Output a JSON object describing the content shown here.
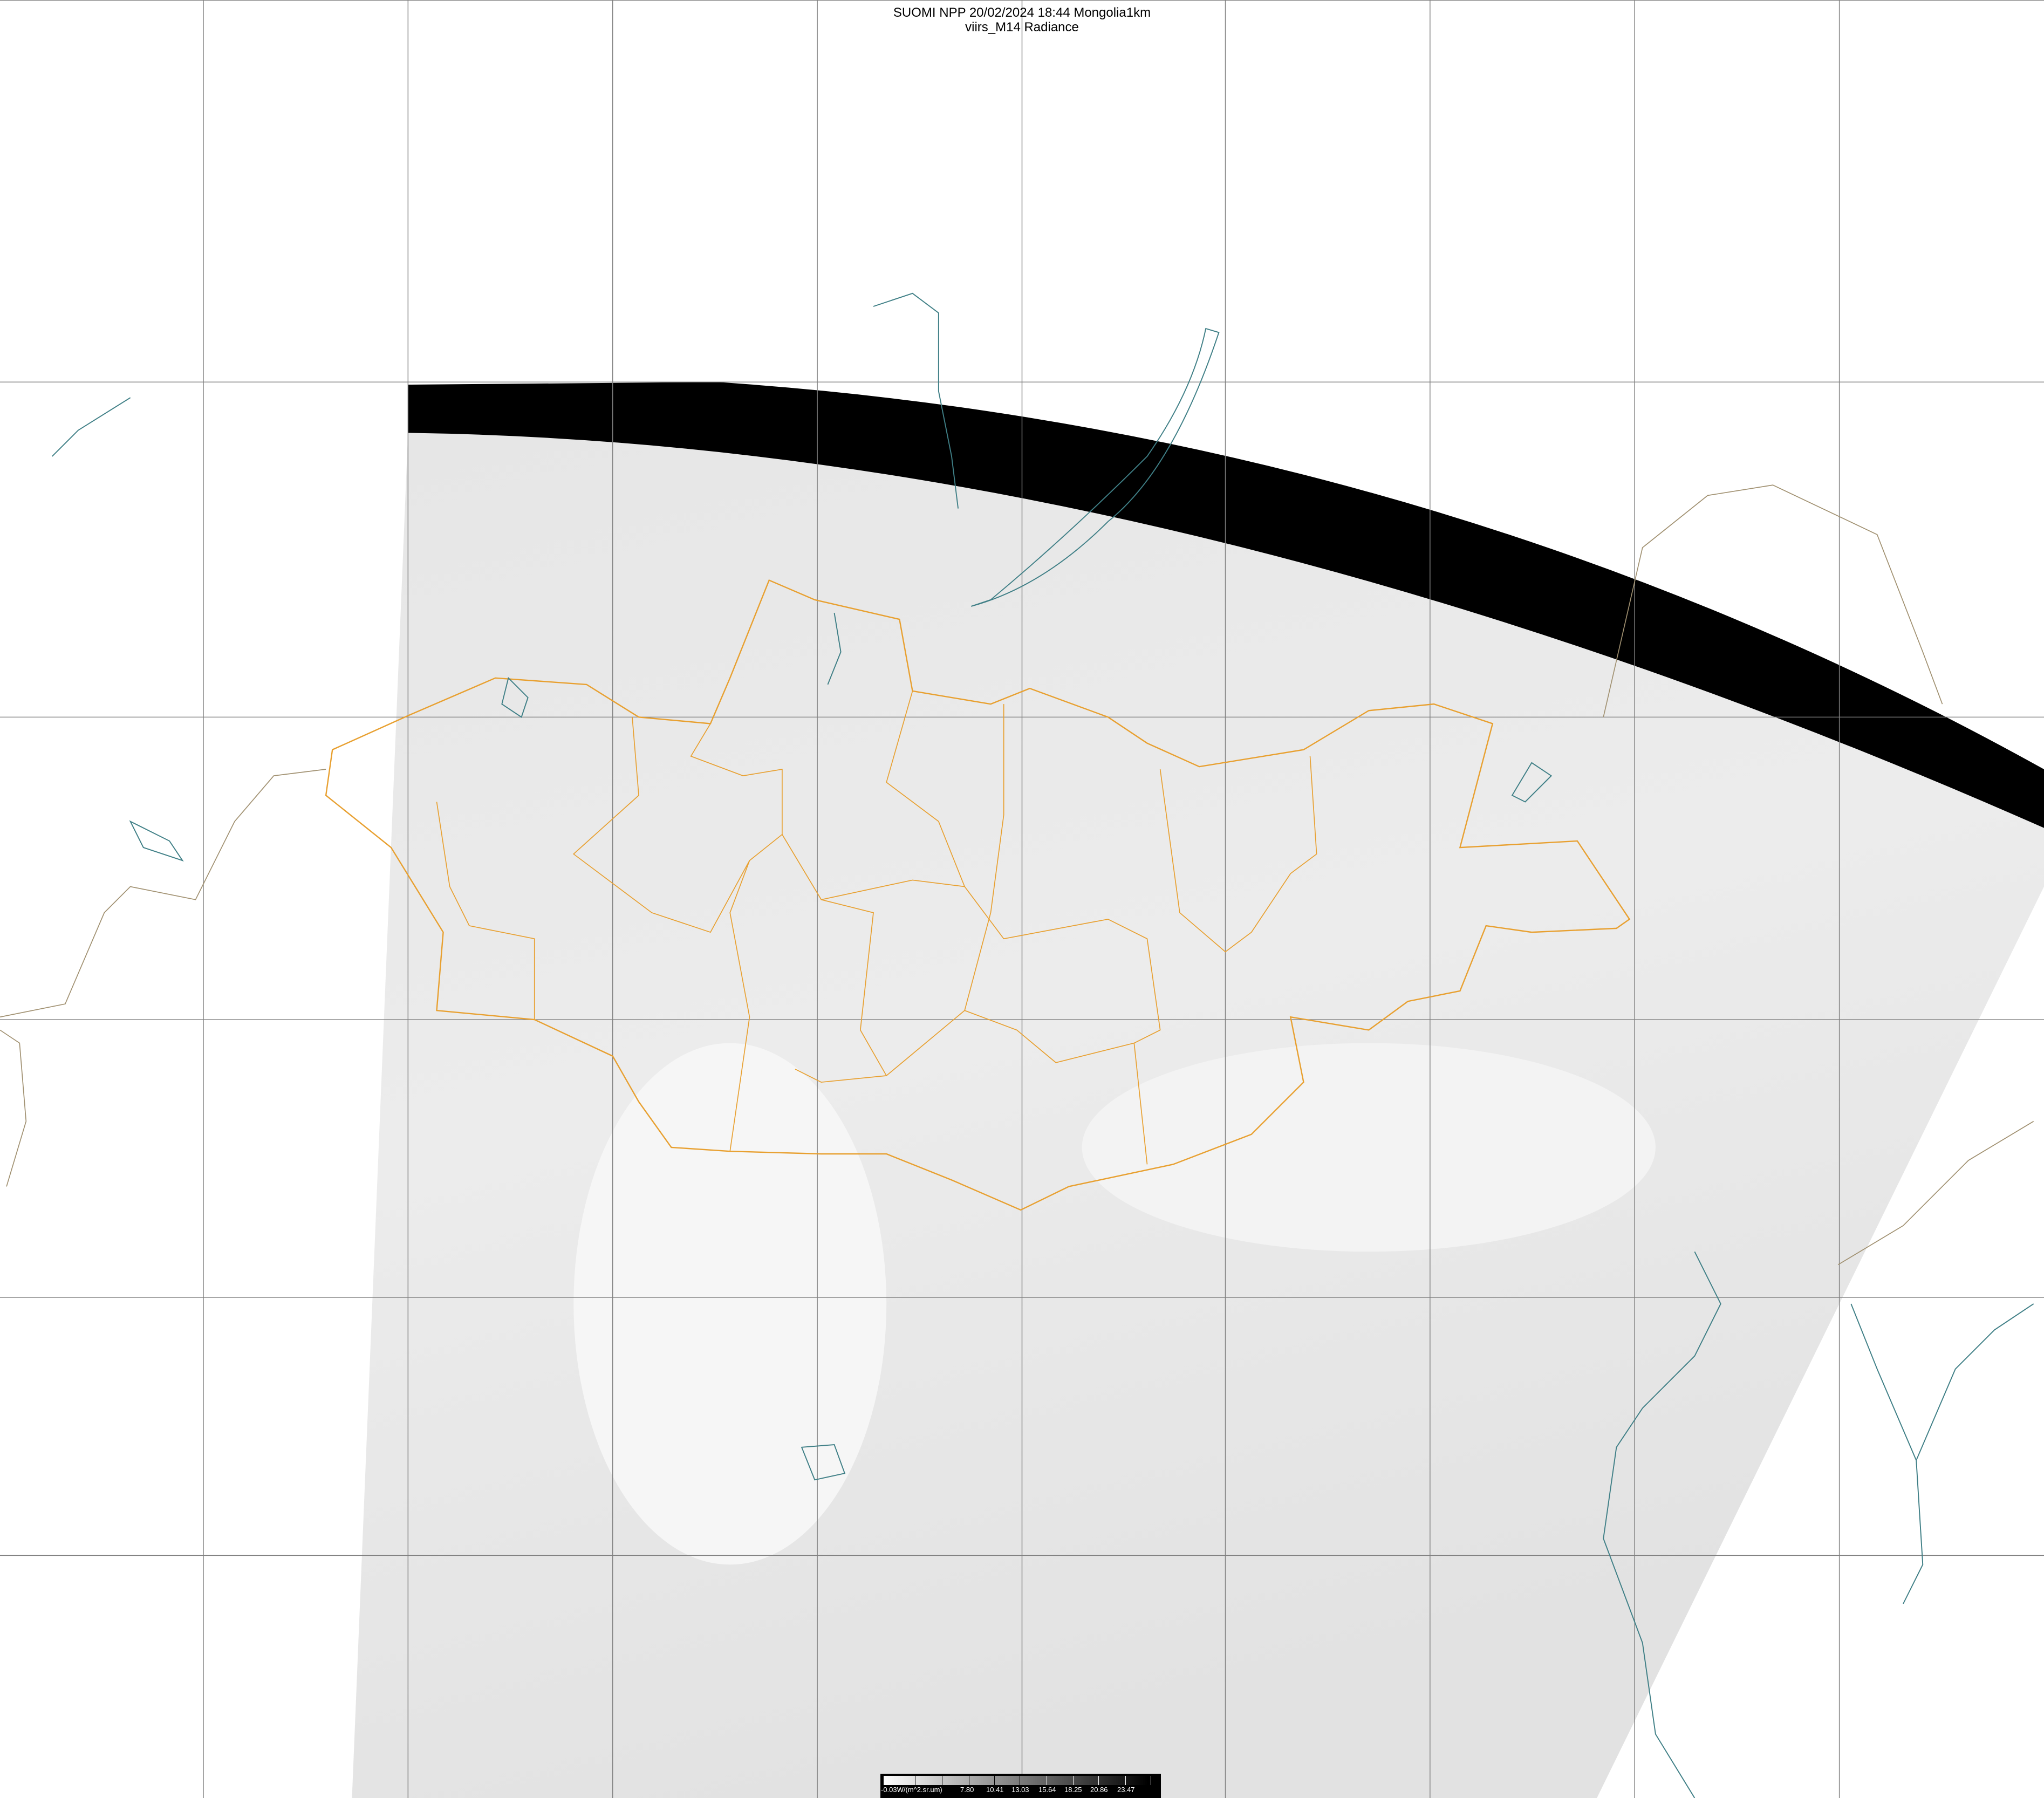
{
  "title": {
    "line1": "SUOMI NPP 20/02/2024 18:44 Mongolia1km",
    "line2": "viirs_M14 Radiance"
  },
  "colorbar": {
    "unit_label": "-0.03W/(m^2.sr.um)",
    "ticks": [
      "7.80",
      "10.41",
      "13.03",
      "15.64",
      "18.25",
      "20.86",
      "23.47"
    ],
    "colormap": "grayscale white-to-black"
  },
  "colors": {
    "border": "#e8a030",
    "coastline": "#3f7f86",
    "foreign_border": "#a09070",
    "grid": "#808080",
    "no_data": "#000000"
  }
}
